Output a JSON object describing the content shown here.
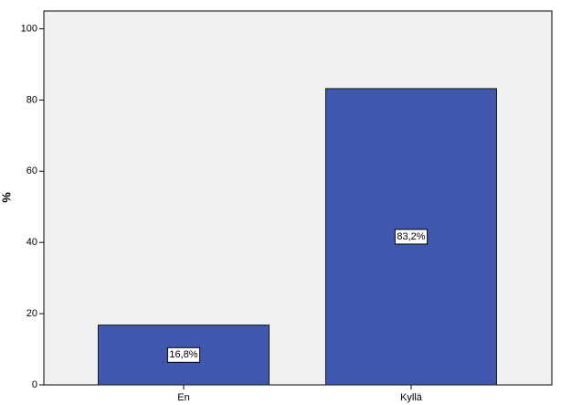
{
  "chart_data": {
    "type": "bar",
    "y_label": "%",
    "categories": [
      "En",
      "Kyllä"
    ],
    "values": [
      16.8,
      83.2
    ],
    "value_labels": [
      "16,8%",
      "83,2%"
    ],
    "color": "#3f58ad",
    "ylim": [
      0,
      105
    ],
    "yticks": [
      0,
      20,
      40,
      60,
      80,
      100
    ],
    "grid": false
  }
}
